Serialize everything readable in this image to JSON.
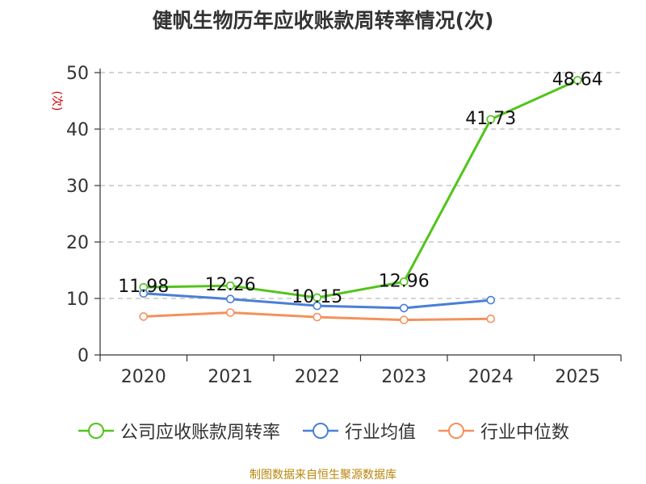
{
  "source": "制图数据来自恒生聚源数据库",
  "colors": {
    "company": "#52c41a",
    "industry_avg": "#4a7fd6",
    "industry_median": "#f4915b",
    "axis": "#333333",
    "grid": "#bbbbbb",
    "ylabel": "#cc0000"
  },
  "chart_data": {
    "type": "line",
    "title": "健帆生物历年应收账款周转率情况(次)",
    "xlabel": "",
    "ylabel": "(次)",
    "categories": [
      "2020",
      "2021",
      "2022",
      "2023",
      "2024",
      "2025"
    ],
    "ylim": [
      0,
      50
    ],
    "yticks": [
      0,
      10,
      20,
      30,
      40,
      50
    ],
    "grid": true,
    "legend_position": "bottom",
    "series": [
      {
        "name": "公司应收账款周转率",
        "color_key": "company",
        "values": [
          11.98,
          12.26,
          10.15,
          12.96,
          41.73,
          48.64
        ],
        "labels": [
          "11.98",
          "12.26",
          "10.15",
          "12.96",
          "41.73",
          "48.64"
        ]
      },
      {
        "name": "行业均值",
        "color_key": "industry_avg",
        "values": [
          10.9,
          9.9,
          8.7,
          8.3,
          9.7,
          null
        ]
      },
      {
        "name": "行业中位数",
        "color_key": "industry_median",
        "values": [
          6.8,
          7.5,
          6.7,
          6.2,
          6.4,
          null
        ]
      }
    ]
  }
}
